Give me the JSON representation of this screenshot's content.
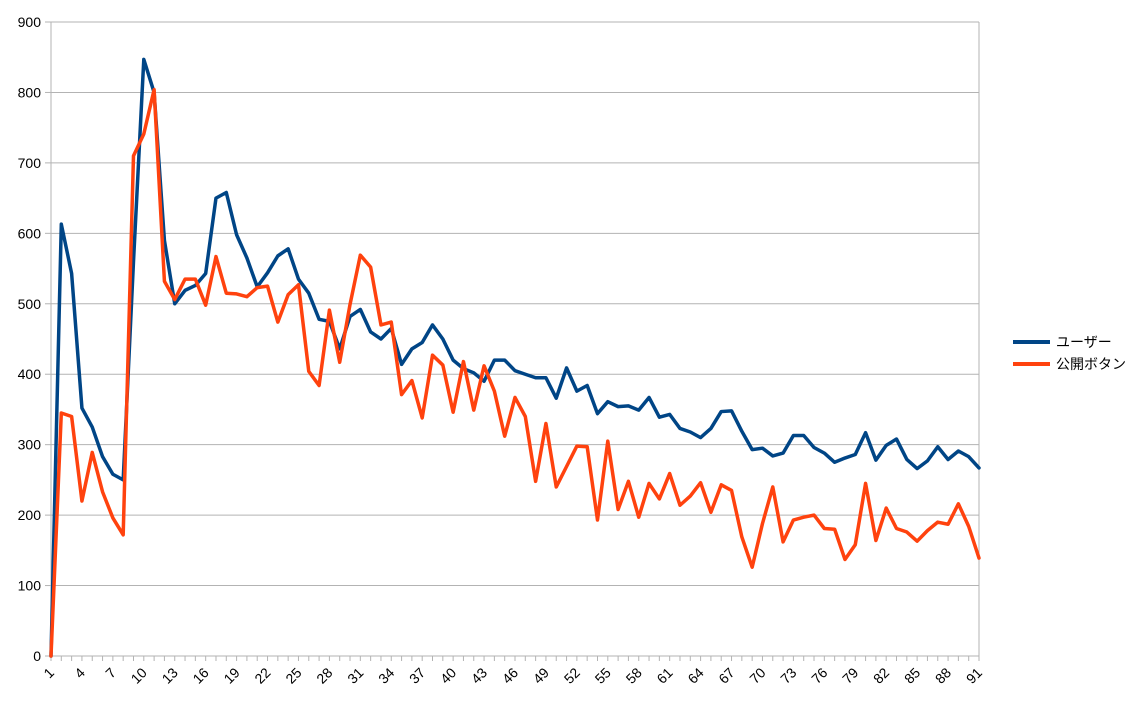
{
  "chart_data": {
    "type": "line",
    "title": "",
    "xlabel": "",
    "ylabel": "",
    "ylim": [
      0,
      900
    ],
    "yticks": [
      0,
      100,
      200,
      300,
      400,
      500,
      600,
      700,
      800,
      900
    ],
    "x_tick_every": 3,
    "grid": true,
    "legend_position": "right",
    "x": [
      1,
      2,
      3,
      4,
      5,
      6,
      7,
      8,
      9,
      10,
      11,
      12,
      13,
      14,
      15,
      16,
      17,
      18,
      19,
      20,
      21,
      22,
      23,
      24,
      25,
      26,
      27,
      28,
      29,
      30,
      31,
      32,
      33,
      34,
      35,
      36,
      37,
      38,
      39,
      40,
      41,
      42,
      43,
      44,
      45,
      46,
      47,
      48,
      49,
      50,
      51,
      52,
      53,
      54,
      55,
      56,
      57,
      58,
      59,
      60,
      61,
      62,
      63,
      64,
      65,
      66,
      67,
      68,
      69,
      70,
      71,
      72,
      73,
      74,
      75,
      76,
      77,
      78,
      79,
      80,
      81,
      82,
      83,
      84,
      85,
      86,
      87,
      88,
      89,
      90,
      91
    ],
    "series": [
      {
        "name": "ユーザー",
        "color": "#004586",
        "values": [
          0,
          613,
          543,
          352,
          325,
          283,
          258,
          250,
          560,
          847,
          800,
          590,
          500,
          519,
          526,
          543,
          650,
          658,
          598,
          565,
          524,
          544,
          568,
          578,
          535,
          515,
          478,
          475,
          436,
          482,
          492,
          460,
          450,
          465,
          414,
          436,
          445,
          470,
          450,
          420,
          408,
          402,
          390,
          420,
          420,
          405,
          400,
          395,
          395,
          366,
          409,
          376,
          384,
          344,
          361,
          354,
          355,
          349,
          367,
          339,
          343,
          323,
          318,
          310,
          323,
          347,
          348,
          319,
          293,
          295,
          284,
          288,
          313,
          313,
          296,
          288,
          275,
          281,
          286,
          317,
          278,
          299,
          308,
          279,
          266,
          277,
          297,
          279,
          291,
          283,
          267
        ]
      },
      {
        "name": "公開ボタン",
        "color": "#ff420e",
        "values": [
          0,
          345,
          340,
          220,
          289,
          233,
          196,
          172,
          710,
          741,
          804,
          532,
          506,
          535,
          535,
          498,
          567,
          515,
          514,
          510,
          523,
          525,
          474,
          513,
          527,
          404,
          384,
          491,
          417,
          499,
          569,
          552,
          470,
          474,
          371,
          391,
          338,
          427,
          413,
          346,
          418,
          349,
          412,
          376,
          312,
          367,
          340,
          248,
          330,
          240,
          269,
          298,
          297,
          193,
          305,
          208,
          248,
          197,
          245,
          223,
          259,
          214,
          227,
          246,
          204,
          243,
          235,
          169,
          126,
          188,
          240,
          162,
          193,
          197,
          200,
          181,
          180,
          137,
          158,
          245,
          164,
          210,
          181,
          176,
          163,
          178,
          190,
          187,
          216,
          184,
          139
        ]
      }
    ]
  }
}
